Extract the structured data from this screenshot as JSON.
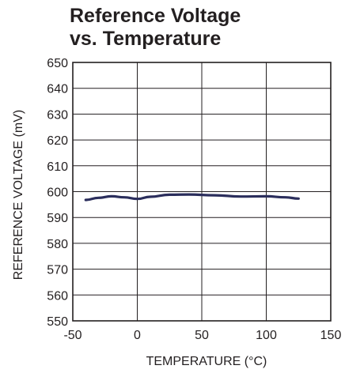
{
  "chart_data": {
    "type": "line",
    "title": [
      "Reference Voltage",
      "vs. Temperature"
    ],
    "xlabel": "TEMPERATURE (°C)",
    "ylabel": "REFERENCE VOLTAGE (mV)",
    "xlim": [
      -50,
      150
    ],
    "ylim": [
      550,
      650
    ],
    "x_ticks": [
      -50,
      0,
      50,
      100,
      150
    ],
    "y_ticks": [
      550,
      560,
      570,
      580,
      590,
      600,
      610,
      620,
      630,
      640,
      650
    ],
    "grid": true,
    "series": [
      {
        "color": "#2b2e5c",
        "x": [
          -40,
          -30,
          -20,
          -10,
          0,
          10,
          25,
          40,
          60,
          80,
          100,
          115,
          125
        ],
        "y": [
          596.8,
          597.6,
          598.2,
          597.8,
          597.2,
          598.0,
          598.8,
          598.9,
          598.6,
          598.1,
          598.2,
          597.8,
          597.3
        ]
      }
    ]
  }
}
